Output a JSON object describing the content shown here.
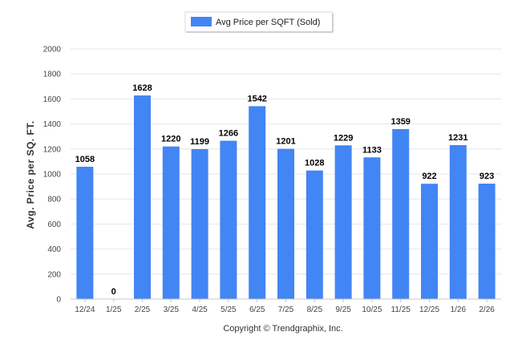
{
  "chart_data": {
    "type": "bar",
    "categories": [
      "12/24",
      "1/25",
      "2/25",
      "3/25",
      "4/25",
      "5/25",
      "6/25",
      "7/25",
      "8/25",
      "9/25",
      "10/25",
      "11/25",
      "12/25",
      "1/26",
      "2/26"
    ],
    "series": [
      {
        "name": "Avg Price per SQFT (Sold)",
        "values": [
          1058,
          0,
          1628,
          1220,
          1199,
          1266,
          1542,
          1201,
          1028,
          1229,
          1133,
          1359,
          922,
          1231,
          923
        ],
        "color": "#4285f4"
      }
    ],
    "ylabel": "Avg. Price per SQ. FT.",
    "ylim": [
      0,
      2000
    ],
    "yticks": [
      0,
      200,
      400,
      600,
      800,
      1000,
      1200,
      1400,
      1600,
      1800,
      2000
    ],
    "grid": true,
    "legend_position": "top-center",
    "footer": "Copyright © Trendgraphix, Inc."
  }
}
